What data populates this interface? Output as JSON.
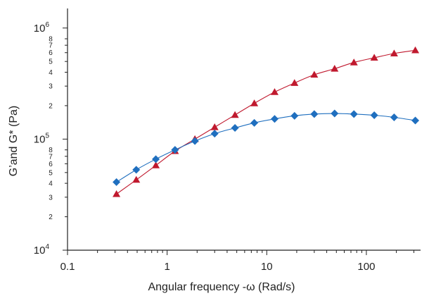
{
  "chart_data": {
    "type": "line",
    "xscale": "log",
    "yscale": "log",
    "xlim": [
      0.1,
      350
    ],
    "ylim": [
      10000,
      1500000
    ],
    "xlabel": "Angular frequency -ω (Rad/s)",
    "ylabel": "G’and G* (Pa)",
    "x_ticks": [
      0.1,
      1,
      10,
      100
    ],
    "x_tick_labels": [
      "0.1",
      "1",
      "10",
      "100"
    ],
    "y_major_ticks": [
      {
        "value": 10000,
        "base": "10",
        "exp": "4"
      },
      {
        "value": 100000,
        "base": "10",
        "exp": "5"
      },
      {
        "value": 1000000,
        "base": "10",
        "exp": "6"
      }
    ],
    "y_minor_ticks": [
      {
        "value": 20000,
        "label": "2"
      },
      {
        "value": 30000,
        "label": "3"
      },
      {
        "value": 40000,
        "label": "4"
      },
      {
        "value": 50000,
        "label": "5"
      },
      {
        "value": 60000,
        "label": "6"
      },
      {
        "value": 70000,
        "label": "7"
      },
      {
        "value": 80000,
        "label": "8"
      },
      {
        "value": 200000,
        "label": "2"
      },
      {
        "value": 300000,
        "label": "3"
      },
      {
        "value": 400000,
        "label": "4"
      },
      {
        "value": 500000,
        "label": "5"
      },
      {
        "value": 600000,
        "label": "6"
      },
      {
        "value": 700000,
        "label": "7"
      },
      {
        "value": 800000,
        "label": "8"
      }
    ],
    "x": [
      0.31,
      0.49,
      0.77,
      1.2,
      1.9,
      3.0,
      4.8,
      7.5,
      12,
      19,
      30,
      48,
      75,
      120,
      190,
      310
    ],
    "series": [
      {
        "marker": "triangle",
        "color": "#c0192e",
        "values": [
          32000,
          43000,
          58000,
          78000,
          100000,
          128000,
          165000,
          210000,
          265000,
          320000,
          380000,
          430000,
          490000,
          540000,
          590000,
          630000
        ]
      },
      {
        "marker": "diamond",
        "color": "#1f6fbf",
        "values": [
          41000,
          53000,
          66000,
          80000,
          96000,
          112000,
          126000,
          140000,
          152000,
          162000,
          168000,
          170000,
          168000,
          164000,
          157000,
          147000
        ]
      }
    ],
    "grid": false
  }
}
